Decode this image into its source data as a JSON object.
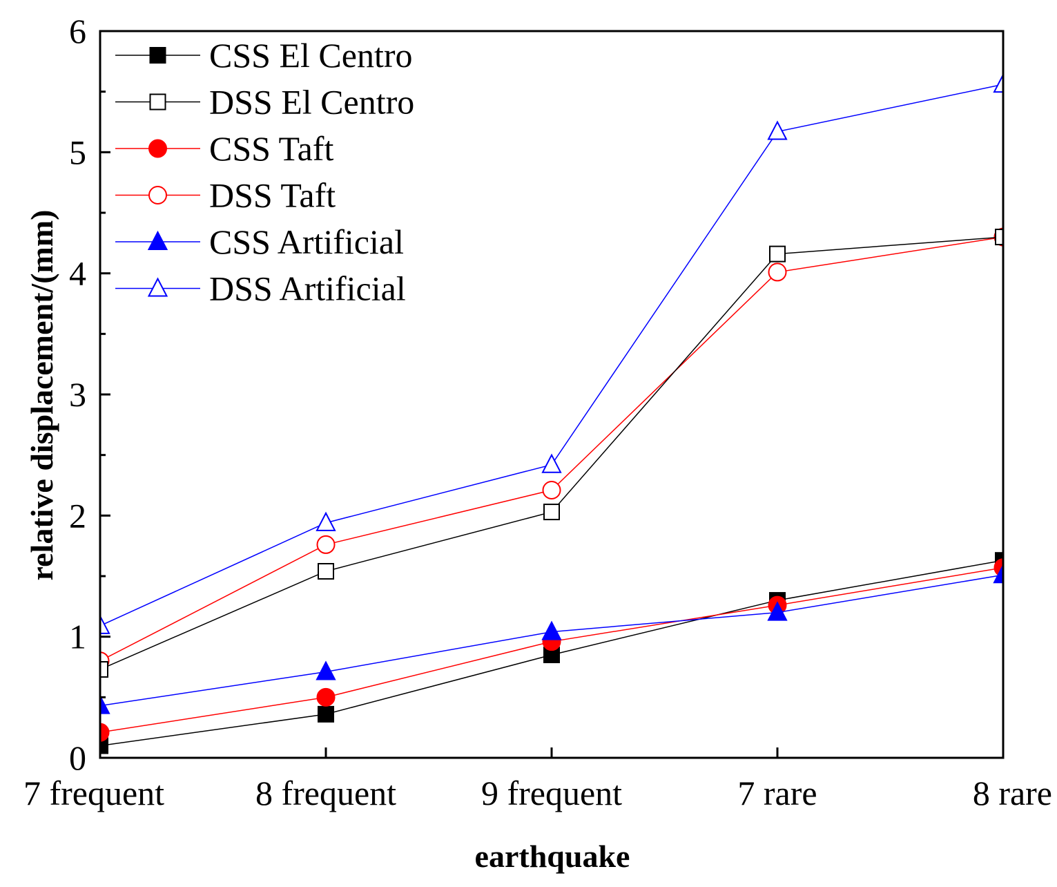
{
  "chart_data": {
    "type": "line",
    "title": "",
    "xlabel": "earthquake",
    "ylabel": "relative displacement/(mm)",
    "categories": [
      "7 frequent",
      "8 frequent",
      "9 frequent",
      "7 rare",
      "8 rare"
    ],
    "ylim": [
      0,
      6
    ],
    "yticks": [
      0,
      1,
      2,
      3,
      4,
      5,
      6
    ],
    "grid": false,
    "legend_position": "top-left",
    "series": [
      {
        "name": "CSS El Centro",
        "color": "#000000",
        "marker": "square",
        "filled": true,
        "values": [
          0.1,
          0.36,
          0.85,
          1.3,
          1.63
        ]
      },
      {
        "name": "DSS El Centro",
        "color": "#000000",
        "marker": "square",
        "filled": false,
        "values": [
          0.73,
          1.54,
          2.03,
          4.16,
          4.3
        ]
      },
      {
        "name": "CSS Taft",
        "color": "#ff0000",
        "marker": "circle",
        "filled": true,
        "values": [
          0.21,
          0.5,
          0.96,
          1.26,
          1.57
        ]
      },
      {
        "name": "DSS Taft",
        "color": "#ff0000",
        "marker": "circle",
        "filled": false,
        "values": [
          0.8,
          1.76,
          2.21,
          4.01,
          4.3
        ]
      },
      {
        "name": "CSS Artificial",
        "color": "#0000ff",
        "marker": "triangle",
        "filled": true,
        "values": [
          0.43,
          0.71,
          1.04,
          1.2,
          1.51
        ]
      },
      {
        "name": "DSS Artificial",
        "color": "#0000ff",
        "marker": "triangle",
        "filled": false,
        "values": [
          1.09,
          1.94,
          2.42,
          5.17,
          5.56
        ]
      }
    ]
  }
}
